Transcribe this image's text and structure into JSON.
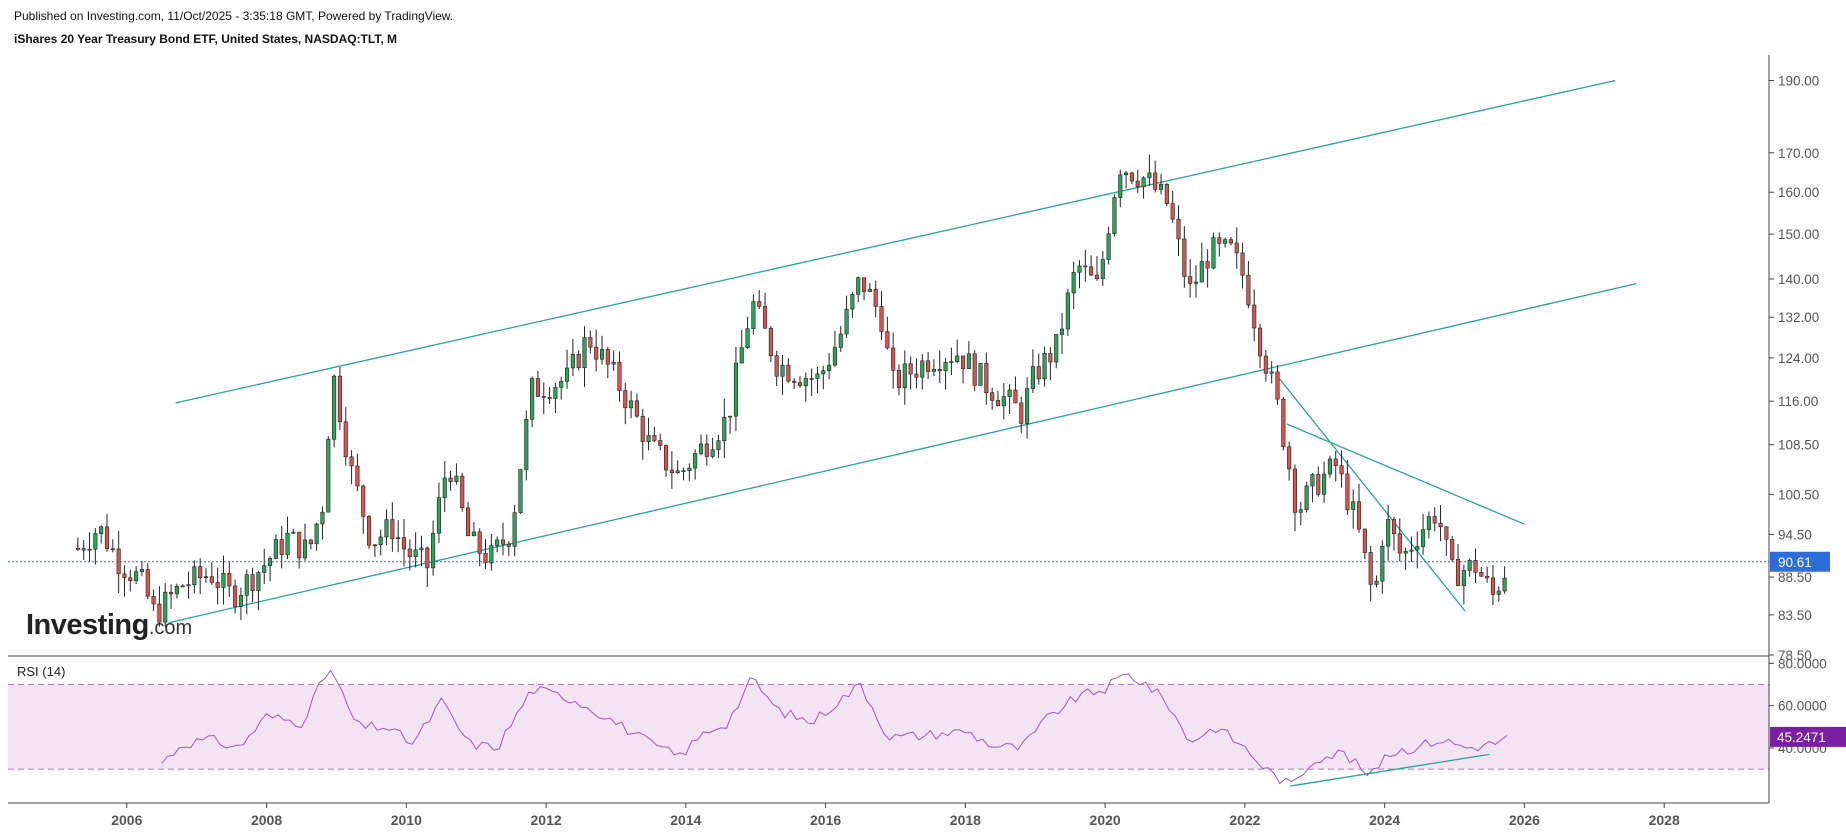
{
  "header": {
    "published": "Published on Investing.com, 11/Oct/2025 - 3:35:18 GMT, Powered by TradingView.",
    "instrument": "iShares 20  Year Treasury Bond ETF, United States, NASDAQ:TLT, M"
  },
  "logo": {
    "main": "Investing",
    "suffix": ".com"
  },
  "colors": {
    "up": "#26a65b",
    "down": "#d9534f",
    "trend": "#26a69a",
    "rsi_line": "#a155c4",
    "rsi_band": "#f3e3f3",
    "last_badge": "#2c6dd8",
    "rsi_badge": "#7b1fa2"
  },
  "chart_data": [
    {
      "type": "candlestick",
      "title": "iShares 20  Year Treasury Bond ETF, United States, NASDAQ:TLT, M",
      "interval": "M",
      "x_range": [
        2004.3,
        2029.5
      ],
      "x_ticks": [
        {
          "value": 2006,
          "label": "2006"
        },
        {
          "value": 2008,
          "label": "2008"
        },
        {
          "value": 2010,
          "label": "2010"
        },
        {
          "value": 2012,
          "label": "2012"
        },
        {
          "value": 2014,
          "label": "2014"
        },
        {
          "value": 2016,
          "label": "2016"
        },
        {
          "value": 2018,
          "label": "2018"
        },
        {
          "value": 2020,
          "label": "2020"
        },
        {
          "value": 2022,
          "label": "2022"
        },
        {
          "value": 2024,
          "label": "2024"
        },
        {
          "value": 2026,
          "label": "2026"
        },
        {
          "value": 2028,
          "label": "2028"
        }
      ],
      "y_scale": "log",
      "y_range": [
        78.5,
        197
      ],
      "y_ticks": [
        {
          "value": 190,
          "label": "190.00"
        },
        {
          "value": 170,
          "label": "170.00"
        },
        {
          "value": 160,
          "label": "160.00"
        },
        {
          "value": 150,
          "label": "150.00"
        },
        {
          "value": 140,
          "label": "140.00"
        },
        {
          "value": 132,
          "label": "132.00"
        },
        {
          "value": 124,
          "label": "124.00"
        },
        {
          "value": 116,
          "label": "116.00"
        },
        {
          "value": 108.5,
          "label": "108.50"
        },
        {
          "value": 100.5,
          "label": "100.50"
        },
        {
          "value": 94.5,
          "label": "94.50"
        },
        {
          "value": 88.5,
          "label": "88.50"
        },
        {
          "value": 83.5,
          "label": "83.50"
        },
        {
          "value": 78.5,
          "label": "78.50"
        }
      ],
      "last_price": {
        "value": 90.61,
        "label": "90.61"
      },
      "price_path": [
        [
          2005.3,
          92.5
        ],
        [
          2005.6,
          95.5
        ],
        [
          2005.9,
          90.5
        ],
        [
          2006.2,
          88.0
        ],
        [
          2006.4,
          83.5
        ],
        [
          2006.8,
          87.5
        ],
        [
          2007.2,
          89.0
        ],
        [
          2007.5,
          86.0
        ],
        [
          2007.9,
          89.5
        ],
        [
          2008.3,
          94.0
        ],
        [
          2008.6,
          92.0
        ],
        [
          2008.8,
          99.0
        ],
        [
          2008.95,
          121.0
        ],
        [
          2009.2,
          104.5
        ],
        [
          2009.5,
          93.5
        ],
        [
          2009.8,
          95.5
        ],
        [
          2010.0,
          92.0
        ],
        [
          2010.3,
          90.0
        ],
        [
          2010.6,
          106.0
        ],
        [
          2010.9,
          93.5
        ],
        [
          2011.2,
          91.0
        ],
        [
          2011.5,
          95.0
        ],
        [
          2011.8,
          118.0
        ],
        [
          2012.3,
          120.0
        ],
        [
          2012.6,
          128.0
        ],
        [
          2013.0,
          120.0
        ],
        [
          2013.5,
          108.0
        ],
        [
          2013.9,
          103.5
        ],
        [
          2014.3,
          109.0
        ],
        [
          2014.6,
          113.0
        ],
        [
          2014.95,
          135.0
        ],
        [
          2015.3,
          123.0
        ],
        [
          2015.6,
          121.0
        ],
        [
          2015.9,
          120.0
        ],
        [
          2016.2,
          128.0
        ],
        [
          2016.5,
          140.0
        ],
        [
          2016.8,
          132.0
        ],
        [
          2016.95,
          119.0
        ],
        [
          2017.5,
          124.0
        ],
        [
          2017.9,
          125.0
        ],
        [
          2018.3,
          119.0
        ],
        [
          2018.8,
          114.0
        ],
        [
          2019.0,
          121.0
        ],
        [
          2019.3,
          126.0
        ],
        [
          2019.6,
          143.0
        ],
        [
          2019.9,
          138.0
        ],
        [
          2020.2,
          167.0
        ],
        [
          2020.6,
          163.0
        ],
        [
          2020.9,
          157.0
        ],
        [
          2021.2,
          137.0
        ],
        [
          2021.5,
          146.0
        ],
        [
          2021.8,
          146.0
        ],
        [
          2022.0,
          140.0
        ],
        [
          2022.2,
          128.0
        ],
        [
          2022.45,
          116.0
        ],
        [
          2022.75,
          98.0
        ],
        [
          2023.0,
          102.0
        ],
        [
          2023.3,
          105.0
        ],
        [
          2023.6,
          96.0
        ],
        [
          2023.85,
          85.0
        ],
        [
          2024.0,
          97.0
        ],
        [
          2024.25,
          91.0
        ],
        [
          2024.5,
          95.0
        ],
        [
          2024.75,
          98.0
        ],
        [
          2024.95,
          89.0
        ],
        [
          2025.3,
          90.0
        ],
        [
          2025.55,
          86.0
        ],
        [
          2025.78,
          90.6
        ]
      ],
      "channel_lines": [
        {
          "name": "channel-upper",
          "points": [
            [
              2006.7,
              115.7
            ],
            [
              2027.3,
              190.0
            ]
          ]
        },
        {
          "name": "channel-lower",
          "points": [
            [
              2006.6,
              82.5
            ],
            [
              2027.6,
              139.0
            ]
          ]
        },
        {
          "name": "trend-down-upper",
          "points": [
            [
              2022.6,
              112.0
            ],
            [
              2026.0,
              96.0
            ]
          ]
        },
        {
          "name": "trend-down-steep",
          "points": [
            [
              2022.5,
              120.0
            ],
            [
              2025.15,
              84.0
            ]
          ]
        }
      ]
    },
    {
      "type": "line",
      "title": "RSI (14)",
      "y_range": [
        14,
        83
      ],
      "y_ticks": [
        {
          "value": 80,
          "label": "80.0000"
        },
        {
          "value": 60,
          "label": "60.0000"
        },
        {
          "value": 40,
          "label": "40.0000"
        }
      ],
      "bands": [
        30,
        70
      ],
      "last_value": {
        "value": 45.2471,
        "label": "45.2471"
      },
      "rsi_path": [
        [
          2006.5,
          33
        ],
        [
          2006.8,
          42
        ],
        [
          2007.2,
          44
        ],
        [
          2007.6,
          40
        ],
        [
          2008.0,
          55
        ],
        [
          2008.5,
          52
        ],
        [
          2008.9,
          78
        ],
        [
          2009.3,
          50
        ],
        [
          2009.7,
          50
        ],
        [
          2010.1,
          42
        ],
        [
          2010.5,
          62
        ],
        [
          2010.9,
          42
        ],
        [
          2011.3,
          40
        ],
        [
          2011.8,
          68
        ],
        [
          2012.4,
          63
        ],
        [
          2012.9,
          54
        ],
        [
          2013.5,
          42
        ],
        [
          2013.9,
          36
        ],
        [
          2014.3,
          48
        ],
        [
          2014.6,
          52
        ],
        [
          2014.95,
          73
        ],
        [
          2015.3,
          58
        ],
        [
          2015.8,
          52
        ],
        [
          2016.1,
          60
        ],
        [
          2016.5,
          70
        ],
        [
          2016.9,
          45
        ],
        [
          2017.4,
          46
        ],
        [
          2018.0,
          48
        ],
        [
          2018.4,
          41
        ],
        [
          2018.8,
          40
        ],
        [
          2019.2,
          55
        ],
        [
          2019.6,
          64
        ],
        [
          2020.0,
          68
        ],
        [
          2020.3,
          75
        ],
        [
          2020.6,
          70
        ],
        [
          2020.9,
          61
        ],
        [
          2021.2,
          43
        ],
        [
          2021.6,
          50
        ],
        [
          2022.0,
          40
        ],
        [
          2022.3,
          30
        ],
        [
          2022.65,
          22
        ],
        [
          2023.0,
          35
        ],
        [
          2023.4,
          38
        ],
        [
          2023.8,
          26
        ],
        [
          2024.0,
          37
        ],
        [
          2024.4,
          40
        ],
        [
          2024.8,
          44
        ],
        [
          2025.2,
          40
        ],
        [
          2025.55,
          42
        ],
        [
          2025.78,
          45.2471
        ]
      ],
      "trend_line": {
        "name": "rsi-support-line",
        "points": [
          [
            2022.65,
            22
          ],
          [
            2025.5,
            37
          ]
        ]
      }
    }
  ]
}
